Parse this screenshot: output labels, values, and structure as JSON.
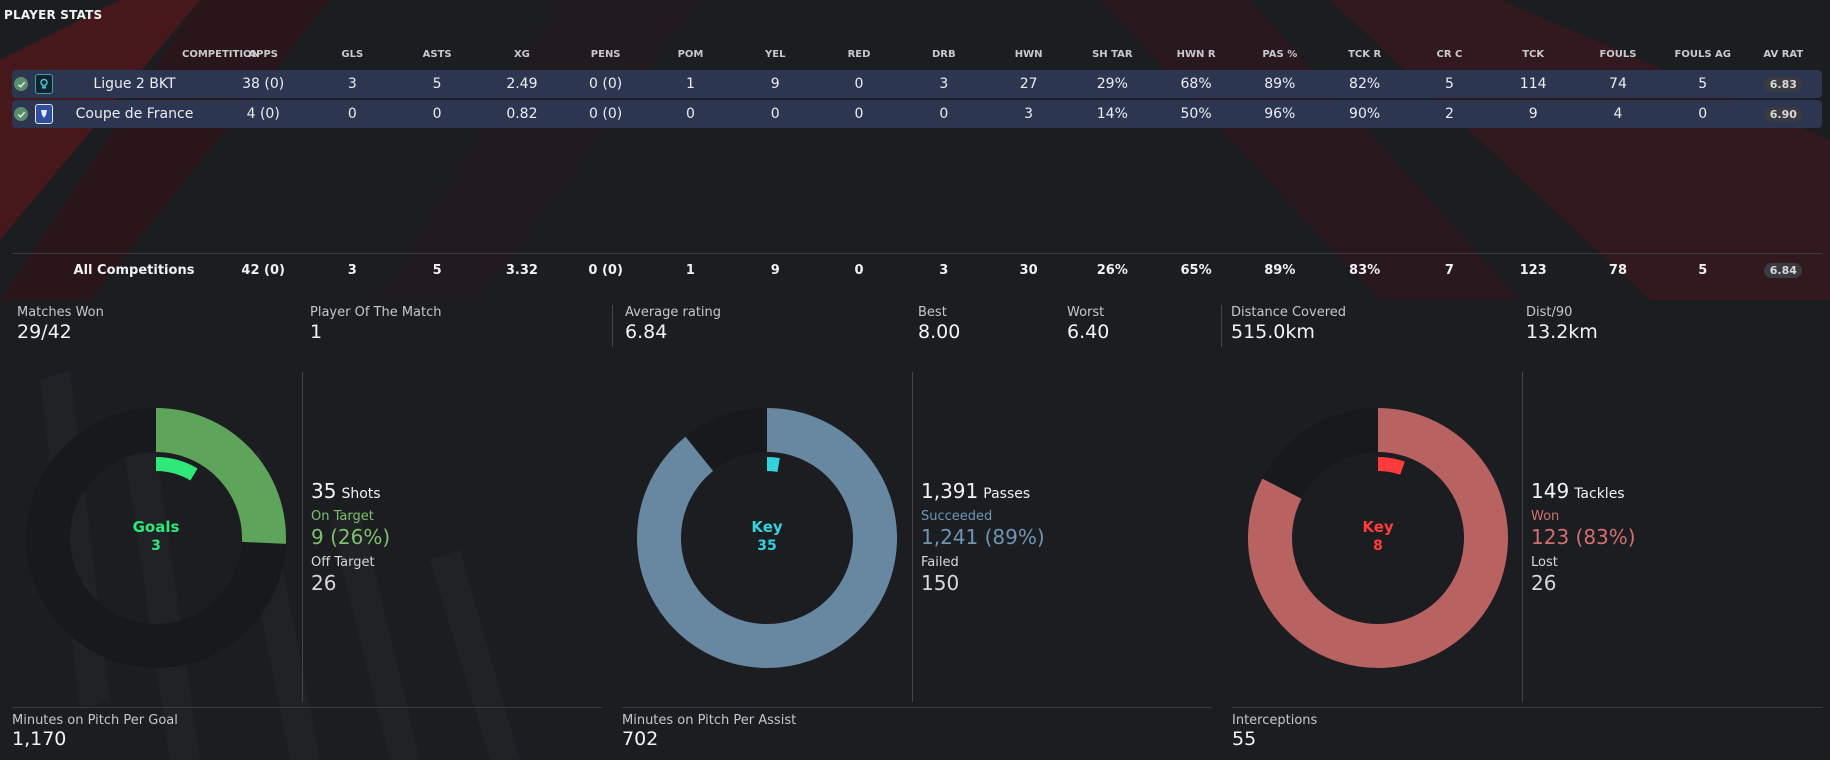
{
  "panel": {
    "title": "PLAYER STATS"
  },
  "table": {
    "headers": [
      "COMPETITION",
      "APPS",
      "GLS",
      "ASTS",
      "XG",
      "PENS",
      "POM",
      "YEL",
      "RED",
      "DRB",
      "HWN",
      "SH TAR",
      "HWN R",
      "PAS %",
      "TCK R",
      "CR C",
      "TCK",
      "FOULS",
      "FOULS AG",
      "AV RAT"
    ],
    "rows": [
      {
        "icon": "ligue2-logo-icon",
        "cells": [
          "Ligue 2 BKT",
          "38 (0)",
          "3",
          "5",
          "2.49",
          "0 (0)",
          "1",
          "9",
          "0",
          "3",
          "27",
          "29%",
          "68%",
          "89%",
          "82%",
          "5",
          "114",
          "74",
          "5",
          "6.83"
        ]
      },
      {
        "icon": "coupe-de-france-logo-icon",
        "cells": [
          "Coupe de France",
          "4 (0)",
          "0",
          "0",
          "0.82",
          "0 (0)",
          "0",
          "0",
          "0",
          "0",
          "3",
          "14%",
          "50%",
          "96%",
          "90%",
          "2",
          "9",
          "4",
          "0",
          "6.90"
        ]
      }
    ],
    "totals": [
      "All Competitions",
      "42 (0)",
      "3",
      "5",
      "3.32",
      "0 (0)",
      "1",
      "9",
      "0",
      "3",
      "30",
      "26%",
      "65%",
      "89%",
      "83%",
      "7",
      "123",
      "78",
      "5",
      "6.84"
    ]
  },
  "kpis": {
    "matches_won": {
      "label": "Matches Won",
      "value": "29/42"
    },
    "potm": {
      "label": "Player Of The Match",
      "value": "1"
    },
    "avg_rating": {
      "label": "Average rating",
      "value": "6.84"
    },
    "best": {
      "label": "Best",
      "value": "8.00"
    },
    "worst": {
      "label": "Worst",
      "value": "6.40"
    },
    "distance": {
      "label": "Distance Covered",
      "value": "515.0km"
    },
    "dist90": {
      "label": "Dist/90",
      "value": "13.2km"
    }
  },
  "charts": {
    "shots": {
      "center_label": "Goals",
      "center_value": "3",
      "total": "35",
      "total_label": "Shots",
      "sub1_label": "On Target",
      "sub1_value": "9 (26%)",
      "sub2_label": "Off Target",
      "sub2_value": "26",
      "color_main": "#5ea45a",
      "color_accent": "#2ee87a",
      "color_sub1": "#7fbf6f"
    },
    "passes": {
      "center_label": "Key",
      "center_value": "35",
      "total": "1,391",
      "total_label": "Passes",
      "sub1_label": "Succeeded",
      "sub1_value": "1,241 (89%)",
      "sub2_label": "Failed",
      "sub2_value": "150",
      "color_main": "#6887a0",
      "color_accent": "#33d3de",
      "color_sub1": "#6f95b4"
    },
    "tackles": {
      "center_label": "Key",
      "center_value": "8",
      "total": "149",
      "total_label": "Tackles",
      "sub1_label": "Won",
      "sub1_value": "123 (83%)",
      "sub2_label": "Lost",
      "sub2_value": "26",
      "color_main": "#b86262",
      "color_accent": "#ff3b3b",
      "color_sub1": "#d07070"
    }
  },
  "chart_data": [
    {
      "type": "pie",
      "title": "Shots",
      "categories": [
        "On Target",
        "Off Target"
      ],
      "values": [
        9,
        26
      ],
      "highlight": {
        "name": "Goals",
        "value": 3
      }
    },
    {
      "type": "pie",
      "title": "Passes",
      "categories": [
        "Succeeded",
        "Failed"
      ],
      "values": [
        1241,
        150
      ],
      "highlight": {
        "name": "Key",
        "value": 35
      }
    },
    {
      "type": "pie",
      "title": "Tackles",
      "categories": [
        "Won",
        "Lost"
      ],
      "values": [
        123,
        26
      ],
      "highlight": {
        "name": "Key",
        "value": 8
      }
    }
  ],
  "footer": {
    "mins_per_goal": {
      "label": "Minutes on Pitch Per Goal",
      "value": "1,170"
    },
    "mins_per_assist": {
      "label": "Minutes on Pitch Per Assist",
      "value": "702"
    },
    "interceptions": {
      "label": "Interceptions",
      "value": "55"
    }
  }
}
